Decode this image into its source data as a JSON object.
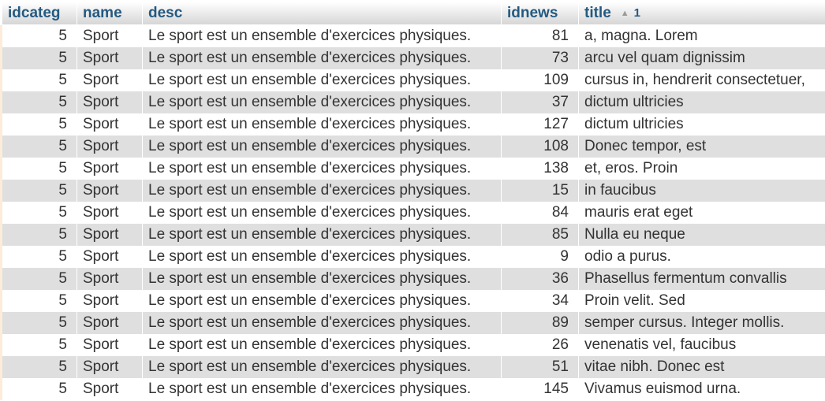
{
  "columns": {
    "idcateg": "idcateg",
    "name": "name",
    "desc": "desc",
    "idnews": "idnews",
    "title": "title",
    "title_sort_icon": "triangle-up-icon",
    "title_sort_order": "1"
  },
  "rows": [
    {
      "idcateg": "5",
      "name": "Sport",
      "desc": "Le sport est un ensemble d'exercices physiques.",
      "idnews": "81",
      "title": "a, magna. Lorem"
    },
    {
      "idcateg": "5",
      "name": "Sport",
      "desc": "Le sport est un ensemble d'exercices physiques.",
      "idnews": "73",
      "title": "arcu vel quam dignissim"
    },
    {
      "idcateg": "5",
      "name": "Sport",
      "desc": "Le sport est un ensemble d'exercices physiques.",
      "idnews": "109",
      "title": "cursus in, hendrerit consectetuer,"
    },
    {
      "idcateg": "5",
      "name": "Sport",
      "desc": "Le sport est un ensemble d'exercices physiques.",
      "idnews": "37",
      "title": "dictum ultricies"
    },
    {
      "idcateg": "5",
      "name": "Sport",
      "desc": "Le sport est un ensemble d'exercices physiques.",
      "idnews": "127",
      "title": "dictum ultricies"
    },
    {
      "idcateg": "5",
      "name": "Sport",
      "desc": "Le sport est un ensemble d'exercices physiques.",
      "idnews": "108",
      "title": "Donec tempor, est"
    },
    {
      "idcateg": "5",
      "name": "Sport",
      "desc": "Le sport est un ensemble d'exercices physiques.",
      "idnews": "138",
      "title": "et, eros. Proin"
    },
    {
      "idcateg": "5",
      "name": "Sport",
      "desc": "Le sport est un ensemble d'exercices physiques.",
      "idnews": "15",
      "title": "in faucibus"
    },
    {
      "idcateg": "5",
      "name": "Sport",
      "desc": "Le sport est un ensemble d'exercices physiques.",
      "idnews": "84",
      "title": "mauris erat eget"
    },
    {
      "idcateg": "5",
      "name": "Sport",
      "desc": "Le sport est un ensemble d'exercices physiques.",
      "idnews": "85",
      "title": "Nulla eu neque"
    },
    {
      "idcateg": "5",
      "name": "Sport",
      "desc": "Le sport est un ensemble d'exercices physiques.",
      "idnews": "9",
      "title": "odio a purus."
    },
    {
      "idcateg": "5",
      "name": "Sport",
      "desc": "Le sport est un ensemble d'exercices physiques.",
      "idnews": "36",
      "title": "Phasellus fermentum convallis"
    },
    {
      "idcateg": "5",
      "name": "Sport",
      "desc": "Le sport est un ensemble d'exercices physiques.",
      "idnews": "34",
      "title": "Proin velit. Sed"
    },
    {
      "idcateg": "5",
      "name": "Sport",
      "desc": "Le sport est un ensemble d'exercices physiques.",
      "idnews": "89",
      "title": "semper cursus. Integer mollis."
    },
    {
      "idcateg": "5",
      "name": "Sport",
      "desc": "Le sport est un ensemble d'exercices physiques.",
      "idnews": "26",
      "title": "venenatis vel, faucibus"
    },
    {
      "idcateg": "5",
      "name": "Sport",
      "desc": "Le sport est un ensemble d'exercices physiques.",
      "idnews": "51",
      "title": "vitae nibh. Donec est"
    },
    {
      "idcateg": "5",
      "name": "Sport",
      "desc": "Le sport est un ensemble d'exercices physiques.",
      "idnews": "145",
      "title": "Vivamus euismod urna."
    }
  ]
}
